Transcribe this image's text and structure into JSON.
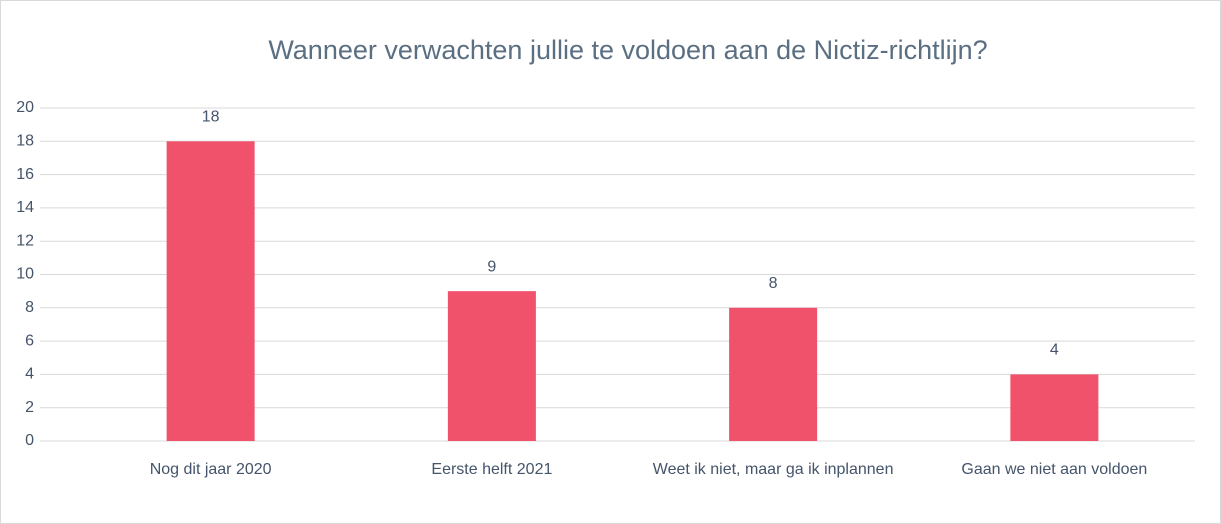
{
  "chart_data": {
    "type": "bar",
    "title": "Wanneer verwachten jullie te voldoen aan de Nictiz-richtlijn?",
    "categories": [
      "Nog dit jaar 2020",
      "Eerste helft 2021",
      "Weet ik niet, maar ga ik inplannen",
      "Gaan we niet aan voldoen"
    ],
    "values": [
      18,
      9,
      8,
      4
    ],
    "color": "#f0516b",
    "ylim": [
      0,
      20
    ],
    "yticks": [
      0,
      2,
      4,
      6,
      8,
      10,
      12,
      14,
      16,
      18,
      20
    ],
    "grid": true
  }
}
